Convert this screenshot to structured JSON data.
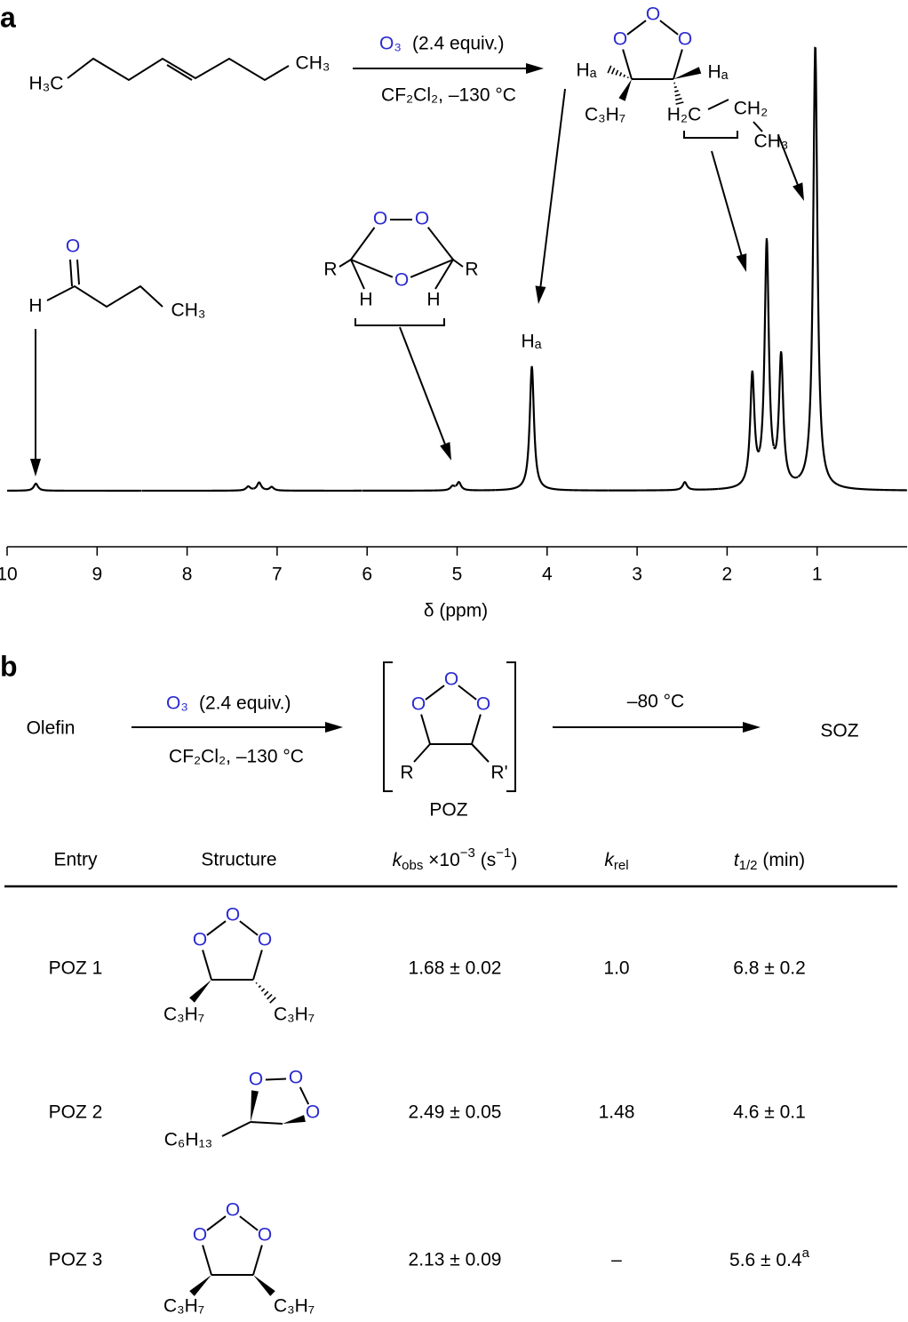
{
  "panel_a": {
    "label": "a",
    "reactant": {
      "left": "H₃C",
      "right": "CH₃"
    },
    "reagent": {
      "ozone": "O₃",
      "amount": "(2.4 equiv.)",
      "conditions": "CF₂Cl₂, –130 °C"
    },
    "product": {
      "ring": [
        "O",
        "O",
        "O"
      ],
      "h_left": "Hₐ",
      "h_right": "Hₐ",
      "propyl": "C₃H₇",
      "ethyl": [
        "H₂C",
        "CH₂",
        "CH₃"
      ]
    },
    "aldehyde": {
      "o": "O",
      "h": "H",
      "ch3": "CH₃"
    },
    "soz": {
      "o": [
        "O",
        "O",
        "O"
      ],
      "r": [
        "R",
        "R"
      ],
      "h": [
        "H",
        "H"
      ]
    },
    "peak_label": "Hₐ"
  },
  "chart_data": {
    "type": "spectrum",
    "x_label": "δ (ppm)",
    "xlim": [
      10,
      0
    ],
    "xticks": [
      10,
      9,
      8,
      7,
      6,
      5,
      4,
      3,
      2,
      1
    ],
    "x": [
      9.68,
      7.32,
      7.2,
      7.06,
      5.05,
      4.98,
      4.17,
      2.47,
      1.72,
      1.56,
      1.4,
      1.02
    ],
    "values": [
      1.6,
      0.9,
      1.8,
      0.8,
      0.9,
      1.8,
      28,
      1.8,
      25,
      55,
      29,
      100
    ],
    "color": "#000000"
  },
  "panel_b": {
    "label": "b",
    "start": "Olefin",
    "reagent": {
      "ozone": "O₃",
      "amount": "(2.4 equiv.)",
      "conditions": "CF₂Cl₂, –130 °C"
    },
    "ring": [
      "O",
      "O",
      "O"
    ],
    "substituents": [
      "R",
      "R'"
    ],
    "intermediate": "POZ",
    "conditions2": "–80 °C",
    "product": "SOZ"
  },
  "table": {
    "header": {
      "entry": "Entry",
      "structure": "Structure",
      "k_obs": [
        "k",
        "obs",
        " ×10",
        "−3",
        " (s",
        "−1",
        ")"
      ],
      "k_rel": [
        "k",
        "rel"
      ],
      "t_half": [
        "t",
        "1/2",
        " (min)"
      ]
    },
    "rows": [
      {
        "entry": "POZ 1",
        "ring": [
          "O",
          "O",
          "O"
        ],
        "groups": [
          "C₃H₇",
          "C₃H₇"
        ],
        "k_obs": "1.68 ± 0.02",
        "k_rel": "1.0",
        "t_half": "6.8 ± 0.2"
      },
      {
        "entry": "POZ 2",
        "ring": [
          "O",
          "O",
          "O"
        ],
        "groups": [
          "C₆H₁₃"
        ],
        "k_obs": "2.49 ± 0.05",
        "k_rel": "1.48",
        "t_half": "4.6 ± 0.1"
      },
      {
        "entry": "POZ 3",
        "ring": [
          "O",
          "O",
          "O"
        ],
        "groups": [
          "C₃H₇",
          "C₃H₇"
        ],
        "k_obs": "2.13 ± 0.09",
        "k_rel": "–",
        "t_half": "5.6 ± 0.4",
        "note": "a"
      }
    ]
  }
}
